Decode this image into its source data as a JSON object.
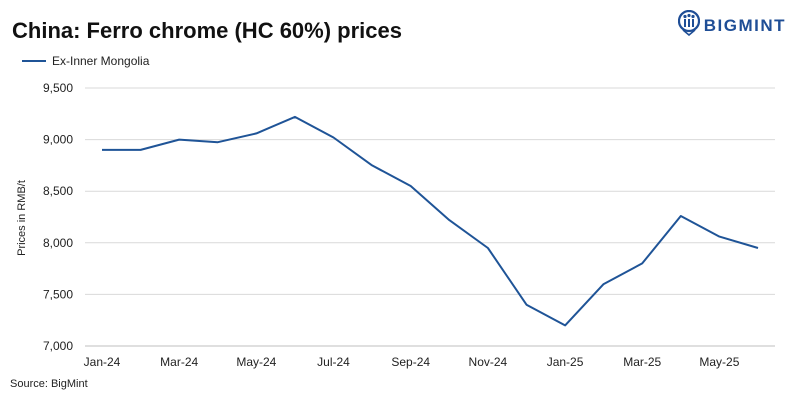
{
  "header": {
    "title": "China: Ferro chrome (HC 60%) prices"
  },
  "brand": {
    "name": "BIGMINT",
    "color": "#1f4e96",
    "icon": "bigmint-logo-icon"
  },
  "footer": {
    "source": "Source: BigMint"
  },
  "colors": {
    "series": "#1f5497",
    "grid": "#d9d9d9",
    "axis": "#bfbfbf"
  },
  "chart_data": {
    "type": "line",
    "title": "China: Ferro chrome (HC 60%) prices",
    "xlabel": "",
    "ylabel": "Prices in RMB/t",
    "ylim": [
      7000,
      9500
    ],
    "yticks": [
      7000,
      7500,
      8000,
      8500,
      9000,
      9500
    ],
    "ytick_labels": [
      "7,000",
      "7,500",
      "8,000",
      "8,500",
      "9,000",
      "9,500"
    ],
    "xtick_labels": [
      "Jan-24",
      "Mar-24",
      "May-24",
      "Jul-24",
      "Sep-24",
      "Nov-24",
      "Jan-25",
      "Mar-25",
      "May-25"
    ],
    "grid": true,
    "legend_position": "top-left",
    "x": [
      "Jan-24",
      "Feb-24",
      "Mar-24",
      "Apr-24",
      "May-24",
      "Jun-24",
      "Jul-24",
      "Aug-24",
      "Sep-24",
      "Oct-24",
      "Nov-24",
      "Dec-24",
      "Jan-25",
      "Feb-25",
      "Mar-25",
      "Apr-25",
      "May-25",
      "Jun-25"
    ],
    "series": [
      {
        "name": "Ex-Inner Mongolia",
        "values": [
          8900,
          8900,
          9000,
          8975,
          9060,
          9220,
          9020,
          8750,
          8550,
          8220,
          7950,
          7400,
          7200,
          7600,
          7800,
          8260,
          8060,
          7950
        ]
      }
    ]
  }
}
